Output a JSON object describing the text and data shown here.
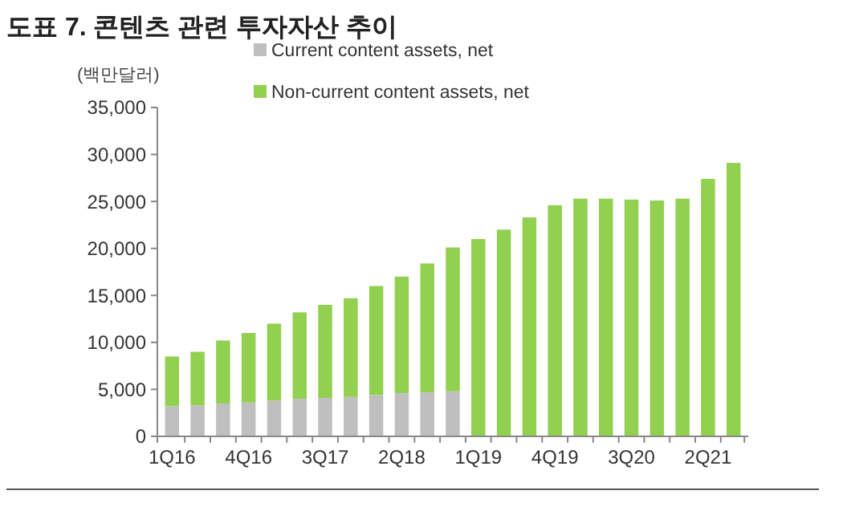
{
  "chart_data": {
    "type": "bar",
    "title": "도표 7. 콘텐츠 관련 투자자산 추이",
    "ylabel": "(백만달러)",
    "categories": [
      "1Q16",
      null,
      null,
      "4Q16",
      null,
      null,
      "3Q17",
      null,
      null,
      "2Q18",
      null,
      null,
      "1Q19",
      null,
      null,
      "4Q19",
      null,
      null,
      "3Q20",
      null,
      null,
      "2Q21",
      null
    ],
    "stacked": true,
    "series": [
      {
        "name": "Current content assets, net",
        "color": "#bfbfbf",
        "values": [
          3200,
          3300,
          3500,
          3600,
          3800,
          4000,
          4100,
          4200,
          4400,
          4600,
          4700,
          4800,
          null,
          null,
          null,
          null,
          null,
          null,
          null,
          null,
          null,
          null,
          null
        ]
      },
      {
        "name": "Non-current content assets, net",
        "color": "#92d050",
        "values": [
          5300,
          5700,
          6700,
          7400,
          8200,
          9200,
          9900,
          10500,
          11600,
          12400,
          13700,
          15300,
          21000,
          22000,
          23300,
          24600,
          25300,
          25300,
          25200,
          25100,
          25300,
          27400,
          29100
        ]
      }
    ],
    "ylim": [
      0,
      35000
    ],
    "yticks": [
      {
        "value": 0,
        "label": "0"
      },
      {
        "value": 5000,
        "label": "5,000"
      },
      {
        "value": 10000,
        "label": "10,000"
      },
      {
        "value": 15000,
        "label": "15,000"
      },
      {
        "value": 20000,
        "label": "20,000"
      },
      {
        "value": 25000,
        "label": "25,000"
      },
      {
        "value": 30000,
        "label": "30,000"
      },
      {
        "value": 35000,
        "label": "35,000"
      }
    ],
    "legend": "top left",
    "grid": false
  }
}
